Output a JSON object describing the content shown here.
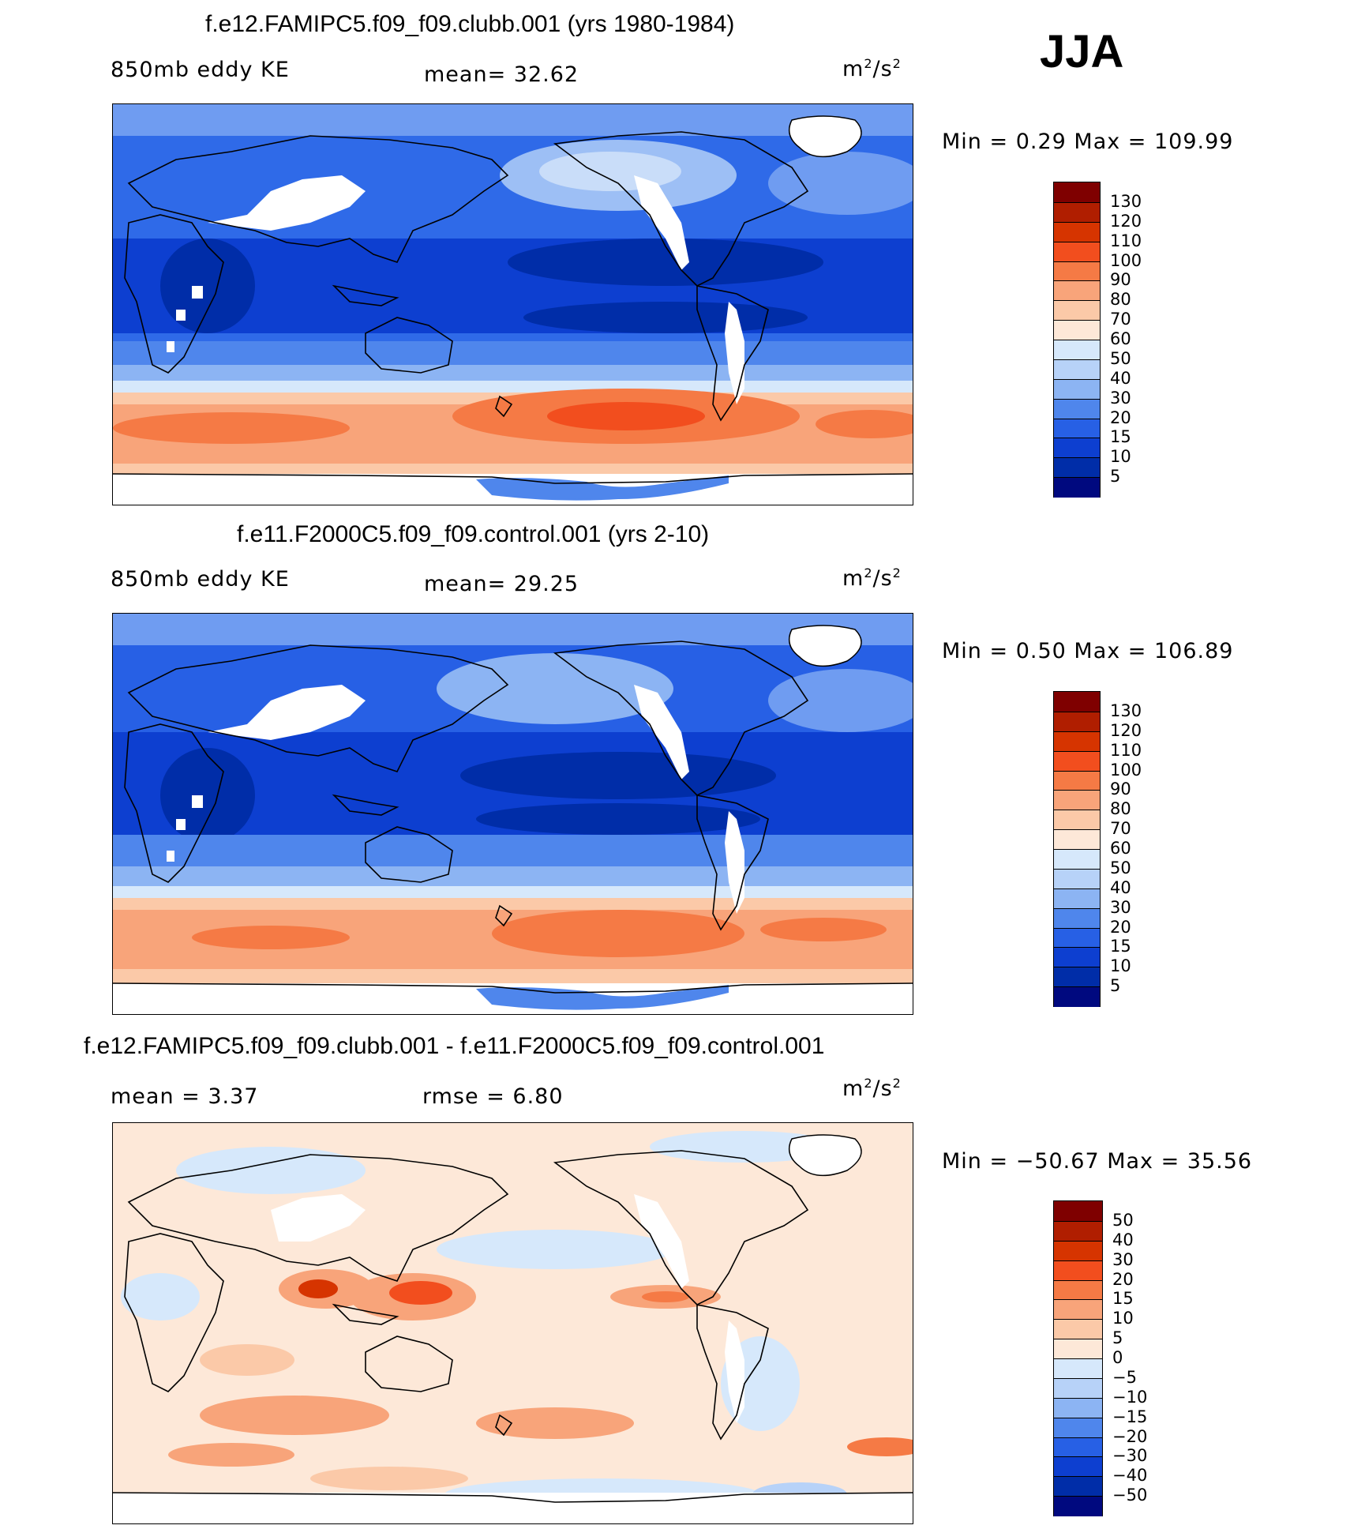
{
  "season": "JJA",
  "panels": [
    {
      "title": "f.e12.FAMIPC5.f09_f09.clubb.001 (yrs 1980-1984)",
      "left_label": "850mb eddy KE",
      "mid_label": "mean=  32.62",
      "units_base": "m",
      "units_exp1": "2",
      "units_mid": "/s",
      "units_exp2": "2",
      "minmax": "Min =   0.29 Max = 109.99",
      "colorbar": {
        "ticks": [
          "130",
          "120",
          "110",
          "100",
          "90",
          "80",
          "70",
          "60",
          "50",
          "40",
          "30",
          "20",
          "15",
          "10",
          "5"
        ],
        "colors": [
          "#7f0000",
          "#b01e00",
          "#d63400",
          "#f24e1e",
          "#f57a45",
          "#f8a47a",
          "#fbc9a8",
          "#fde8d8",
          "#d6e8fb",
          "#b7d2f8",
          "#8cb4f3",
          "#4f86ec",
          "#2760e5",
          "#0d3fd0",
          "#002da8",
          "#00097f"
        ]
      }
    },
    {
      "title": "f.e11.F2000C5.f09_f09.control.001 (yrs 2-10)",
      "left_label": "850mb eddy KE",
      "mid_label": "mean=  29.25",
      "units_base": "m",
      "units_exp1": "2",
      "units_mid": "/s",
      "units_exp2": "2",
      "minmax": "Min =   0.50 Max = 106.89",
      "colorbar": {
        "ticks": [
          "130",
          "120",
          "110",
          "100",
          "90",
          "80",
          "70",
          "60",
          "50",
          "40",
          "30",
          "20",
          "15",
          "10",
          "5"
        ],
        "colors": [
          "#7f0000",
          "#b01e00",
          "#d63400",
          "#f24e1e",
          "#f57a45",
          "#f8a47a",
          "#fbc9a8",
          "#fde8d8",
          "#d6e8fb",
          "#b7d2f8",
          "#8cb4f3",
          "#4f86ec",
          "#2760e5",
          "#0d3fd0",
          "#002da8",
          "#00097f"
        ]
      }
    },
    {
      "title": "f.e12.FAMIPC5.f09_f09.clubb.001 - f.e11.F2000C5.f09_f09.control.001",
      "left_label": "mean =   3.37",
      "mid_label": "rmse =   6.80",
      "units_base": "m",
      "units_exp1": "2",
      "units_mid": "/s",
      "units_exp2": "2",
      "minmax": "Min = −50.67 Max =  35.56",
      "colorbar": {
        "ticks": [
          "50",
          "40",
          "30",
          "20",
          "15",
          "10",
          "5",
          "0",
          "−5",
          "−10",
          "−15",
          "−20",
          "−30",
          "−40",
          "−50"
        ],
        "colors": [
          "#7f0000",
          "#b01e00",
          "#d63400",
          "#f24e1e",
          "#f57a45",
          "#f8a47a",
          "#fbc9a8",
          "#fde8d8",
          "#d6e8fb",
          "#b7d2f8",
          "#8cb4f3",
          "#4f86ec",
          "#2760e5",
          "#0d3fd0",
          "#002da8",
          "#00097f"
        ]
      }
    }
  ]
}
